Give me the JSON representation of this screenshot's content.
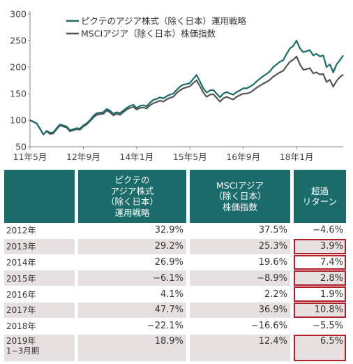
{
  "chart_data": {
    "type": "line",
    "x": [
      "2011-05",
      "2011-06",
      "2011-07",
      "2011-08",
      "2011-09",
      "2011-10",
      "2011-11",
      "2011-12",
      "2012-01",
      "2012-02",
      "2012-03",
      "2012-04",
      "2012-05",
      "2012-06",
      "2012-07",
      "2012-08",
      "2012-09",
      "2012-10",
      "2012-11",
      "2012-12",
      "2013-01",
      "2013-02",
      "2013-03",
      "2013-04",
      "2013-05",
      "2013-06",
      "2013-07",
      "2013-08",
      "2013-09",
      "2013-10",
      "2013-11",
      "2013-12",
      "2014-01",
      "2014-02",
      "2014-03",
      "2014-04",
      "2014-05",
      "2014-06",
      "2014-07",
      "2014-08",
      "2014-09",
      "2014-10",
      "2014-11",
      "2014-12",
      "2015-01",
      "2015-02",
      "2015-03",
      "2015-04",
      "2015-05",
      "2015-06",
      "2015-07",
      "2015-08",
      "2015-09",
      "2015-10",
      "2015-11",
      "2015-12",
      "2016-01",
      "2016-02",
      "2016-03",
      "2016-04",
      "2016-05",
      "2016-06",
      "2016-07",
      "2016-08",
      "2016-09",
      "2016-10",
      "2016-11",
      "2016-12",
      "2017-01",
      "2017-02",
      "2017-03",
      "2017-04",
      "2017-05",
      "2017-06",
      "2017-07",
      "2017-08",
      "2017-09",
      "2017-10",
      "2017-11",
      "2017-12",
      "2018-01",
      "2018-02",
      "2018-03",
      "2018-04",
      "2018-05",
      "2018-06",
      "2018-07",
      "2018-08",
      "2018-09",
      "2018-10",
      "2018-11",
      "2018-12",
      "2019-01",
      "2019-02",
      "2019-03"
    ],
    "series": [
      {
        "name": "ピクテのアジア株式（除く日本）運用戦略",
        "color": "#1b6b6b",
        "values": [
          100,
          97,
          94,
          84,
          73,
          80,
          76,
          77,
          85,
          92,
          90,
          88,
          81,
          83,
          85,
          84,
          90,
          94,
          100,
          108,
          113,
          114,
          115,
          121,
          118,
          112,
          115,
          113,
          118,
          123,
          127,
          129,
          123,
          127,
          128,
          126,
          133,
          138,
          140,
          143,
          141,
          145,
          148,
          150,
          157,
          163,
          167,
          168,
          170,
          178,
          185,
          173,
          160,
          152,
          156,
          157,
          150,
          143,
          150,
          153,
          150,
          148,
          153,
          156,
          160,
          160,
          163,
          167,
          173,
          178,
          183,
          187,
          192,
          200,
          205,
          210,
          213,
          225,
          235,
          240,
          250,
          235,
          228,
          230,
          232,
          222,
          225,
          220,
          222,
          200,
          205,
          190,
          205,
          213,
          222
        ]
      },
      {
        "name": "MSCIアジア（除く日本）株価指数",
        "color": "#555555",
        "values": [
          100,
          97,
          94,
          84,
          73,
          79,
          74,
          75,
          83,
          90,
          88,
          86,
          79,
          81,
          83,
          82,
          88,
          92,
          98,
          105,
          110,
          111,
          112,
          118,
          115,
          109,
          112,
          110,
          115,
          120,
          123,
          125,
          120,
          123,
          124,
          122,
          128,
          132,
          134,
          137,
          135,
          139,
          142,
          144,
          151,
          156,
          160,
          162,
          164,
          170,
          175,
          164,
          152,
          144,
          148,
          149,
          142,
          135,
          141,
          144,
          141,
          139,
          144,
          147,
          150,
          150,
          152,
          156,
          161,
          165,
          169,
          172,
          176,
          182,
          186,
          190,
          193,
          202,
          210,
          214,
          220,
          205,
          195,
          196,
          198,
          188,
          190,
          186,
          187,
          172,
          176,
          163,
          174,
          181,
          186
        ]
      }
    ],
    "ylim": [
      50,
      300
    ],
    "yticks": [
      50,
      100,
      150,
      200,
      250,
      300
    ],
    "xtick_labels": [
      "11年5月",
      "12年9月",
      "14年1月",
      "15年5月",
      "16年9月",
      "18年1月"
    ],
    "xtick_dates": [
      "2011-05",
      "2012-09",
      "2014-01",
      "2015-05",
      "2016-09",
      "2018-01"
    ],
    "legend_position": "top-left",
    "grid": false
  },
  "table": {
    "headers": [
      [],
      [
        "ピクテの",
        "アジア株式",
        "（除く日本）",
        "運用戦略"
      ],
      [
        "MSCIアジア",
        "（除く日本）",
        "株価指数"
      ],
      [
        "超過",
        "リターン"
      ]
    ],
    "rows": [
      {
        "year": "2012年",
        "year2": "",
        "strategy": "32.9%",
        "index": "37.5%",
        "excess": "−4.6%",
        "boxed": false
      },
      {
        "year": "2013年",
        "year2": "",
        "strategy": "29.2%",
        "index": "25.3%",
        "excess": "3.9%",
        "boxed": true
      },
      {
        "year": "2014年",
        "year2": "",
        "strategy": "26.9%",
        "index": "19.6%",
        "excess": "7.4%",
        "boxed": true
      },
      {
        "year": "2015年",
        "year2": "",
        "strategy": "−6.1%",
        "index": "−8.9%",
        "excess": "2.8%",
        "boxed": true
      },
      {
        "year": "2016年",
        "year2": "",
        "strategy": "4.1%",
        "index": "2.2%",
        "excess": "1.9%",
        "boxed": true
      },
      {
        "year": "2017年",
        "year2": "",
        "strategy": "47.7%",
        "index": "36.9%",
        "excess": "10.8%",
        "boxed": true
      },
      {
        "year": "2018年",
        "year2": "",
        "strategy": "−22.1%",
        "index": "−16.6%",
        "excess": "−5.5%",
        "boxed": false
      },
      {
        "year": "2019年",
        "year2": "1−3月期",
        "strategy": "18.9%",
        "index": "12.4%",
        "excess": "6.5%",
        "boxed": true
      }
    ]
  }
}
